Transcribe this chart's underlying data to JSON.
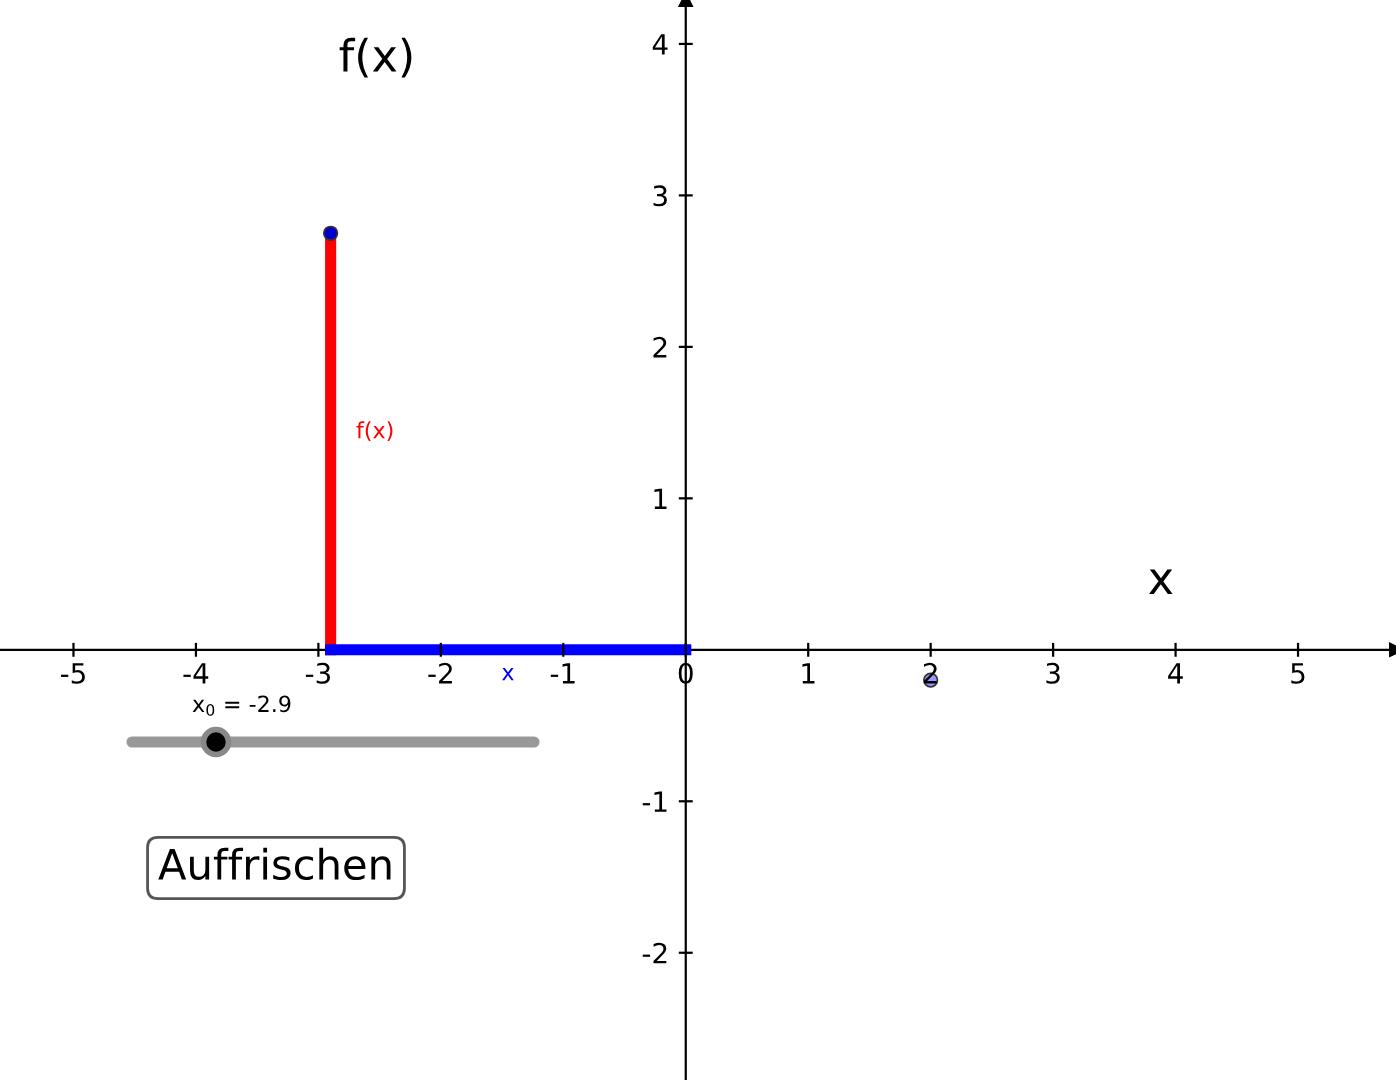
{
  "chart_data": {
    "type": "line",
    "xlabel": "x",
    "ylabel": "f(x)",
    "xlim": [
      -5.6,
      5.8
    ],
    "ylim": [
      -2.84,
      4.29
    ],
    "xticks": [
      -5,
      -4,
      -3,
      -2,
      -1,
      0,
      1,
      2,
      3,
      4,
      5
    ],
    "yticks": [
      -2,
      -1,
      1,
      2,
      3,
      4
    ],
    "grid": false,
    "series": [
      {
        "color": "#ff0000",
        "x": [
          -2.9,
          -2.9
        ],
        "values": [
          0,
          2.75
        ]
      },
      {
        "color": "#0000ff",
        "x": [
          -2.9,
          0
        ],
        "values": [
          0,
          0
        ]
      },
      {
        "type": "scatter",
        "color": "#0000cc",
        "marker": "circle",
        "x": [
          -2.9
        ],
        "values": [
          2.75
        ]
      },
      {
        "type": "scatter",
        "color": "#9999ff",
        "marker": "circle",
        "x": [
          2
        ],
        "values": [
          -0.2
        ]
      }
    ],
    "annotations": [
      "f(x)",
      "x",
      "x$_{0}$ = -2.9",
      "Auffrischen"
    ]
  }
}
